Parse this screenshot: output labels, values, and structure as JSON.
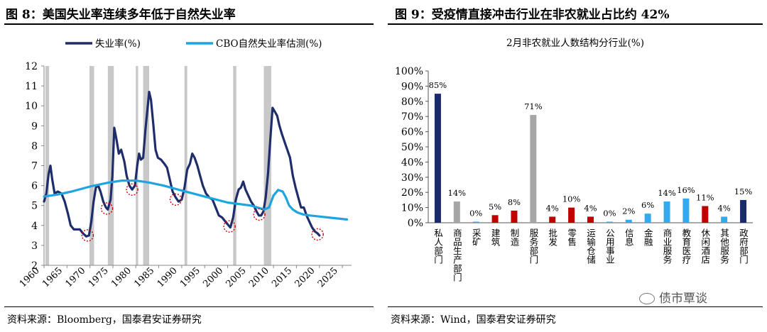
{
  "left": {
    "title": "图 8：美国失业率连续多年低于自然失业率",
    "source": "资料来源：Bloomberg，国泰君安证券研究"
  },
  "right": {
    "title": "图 9：受疫情直接冲击行业在非农就业占比约 42%",
    "source": "资料来源：Wind，国泰君安证券研究"
  },
  "watermark": "债市覃谈",
  "chart_data": [
    {
      "type": "line",
      "title": "",
      "xlabel": "",
      "ylabel": "",
      "xlim": [
        1960,
        2027
      ],
      "ylim": [
        2,
        12
      ],
      "x_ticks": [
        "1960",
        "1965",
        "1970",
        "1975",
        "1980",
        "1985",
        "1990",
        "1995",
        "2000",
        "2005",
        "2010",
        "2015",
        "2020",
        "2025"
      ],
      "y_ticks": [
        "2",
        "3",
        "4",
        "5",
        "6",
        "7",
        "8",
        "9",
        "10",
        "11",
        "12"
      ],
      "legend": [
        "失业率(%)",
        "CBO自然失业率估测(%)"
      ],
      "series": [
        {
          "name": "失业率(%)",
          "color": "#1f2d6b",
          "points": [
            [
              1960.0,
              5.2
            ],
            [
              1960.5,
              5.6
            ],
            [
              1961.0,
              6.6
            ],
            [
              1961.4,
              7.0
            ],
            [
              1961.8,
              6.3
            ],
            [
              1962.3,
              5.6
            ],
            [
              1963.0,
              5.7
            ],
            [
              1963.8,
              5.6
            ],
            [
              1964.5,
              5.2
            ],
            [
              1965.2,
              4.6
            ],
            [
              1965.8,
              4.0
            ],
            [
              1966.5,
              3.8
            ],
            [
              1967.2,
              3.8
            ],
            [
              1967.8,
              3.8
            ],
            [
              1968.5,
              3.6
            ],
            [
              1969.2,
              3.45
            ],
            [
              1969.8,
              3.5
            ],
            [
              1970.3,
              4.2
            ],
            [
              1970.8,
              5.2
            ],
            [
              1971.3,
              5.9
            ],
            [
              1971.8,
              6.0
            ],
            [
              1972.3,
              5.7
            ],
            [
              1972.9,
              5.2
            ],
            [
              1973.5,
              4.9
            ],
            [
              1973.9,
              4.8
            ],
            [
              1974.5,
              5.3
            ],
            [
              1974.9,
              6.5
            ],
            [
              1975.3,
              8.9
            ],
            [
              1975.8,
              8.3
            ],
            [
              1976.3,
              7.6
            ],
            [
              1976.8,
              7.8
            ],
            [
              1977.5,
              7.2
            ],
            [
              1978.0,
              6.5
            ],
            [
              1978.6,
              6.0
            ],
            [
              1979.2,
              5.8
            ],
            [
              1979.8,
              6.0
            ],
            [
              1980.3,
              7.0
            ],
            [
              1980.7,
              7.6
            ],
            [
              1981.1,
              7.3
            ],
            [
              1981.6,
              7.4
            ],
            [
              1982.1,
              8.8
            ],
            [
              1982.6,
              10.0
            ],
            [
              1982.9,
              10.7
            ],
            [
              1983.3,
              10.3
            ],
            [
              1983.8,
              9.1
            ],
            [
              1984.3,
              7.8
            ],
            [
              1984.8,
              7.4
            ],
            [
              1985.5,
              7.3
            ],
            [
              1986.2,
              7.1
            ],
            [
              1986.8,
              6.9
            ],
            [
              1987.4,
              6.3
            ],
            [
              1988.0,
              5.7
            ],
            [
              1988.7,
              5.4
            ],
            [
              1989.3,
              5.2
            ],
            [
              1990.0,
              5.3
            ],
            [
              1990.6,
              5.9
            ],
            [
              1991.2,
              6.8
            ],
            [
              1991.8,
              7.1
            ],
            [
              1992.3,
              7.6
            ],
            [
              1992.8,
              7.4
            ],
            [
              1993.4,
              7.0
            ],
            [
              1994.0,
              6.5
            ],
            [
              1994.6,
              6.0
            ],
            [
              1995.3,
              5.6
            ],
            [
              1996.0,
              5.4
            ],
            [
              1996.7,
              5.3
            ],
            [
              1997.4,
              4.9
            ],
            [
              1998.1,
              4.5
            ],
            [
              1998.8,
              4.4
            ],
            [
              1999.5,
              4.2
            ],
            [
              2000.2,
              4.0
            ],
            [
              2000.6,
              3.9
            ],
            [
              2001.2,
              4.4
            ],
            [
              2001.8,
              5.3
            ],
            [
              2002.4,
              5.8
            ],
            [
              2002.9,
              5.9
            ],
            [
              2003.4,
              6.2
            ],
            [
              2003.9,
              5.8
            ],
            [
              2004.5,
              5.5
            ],
            [
              2005.1,
              5.2
            ],
            [
              2005.7,
              5.0
            ],
            [
              2006.3,
              4.7
            ],
            [
              2006.8,
              4.5
            ],
            [
              2007.3,
              4.5
            ],
            [
              2007.8,
              4.7
            ],
            [
              2008.3,
              5.4
            ],
            [
              2008.8,
              6.6
            ],
            [
              2009.3,
              8.3
            ],
            [
              2009.8,
              9.9
            ],
            [
              2010.3,
              9.7
            ],
            [
              2010.8,
              9.5
            ],
            [
              2011.3,
              9.0
            ],
            [
              2011.8,
              8.6
            ],
            [
              2012.4,
              8.2
            ],
            [
              2013.0,
              7.8
            ],
            [
              2013.6,
              7.4
            ],
            [
              2014.2,
              6.5
            ],
            [
              2014.8,
              5.9
            ],
            [
              2015.4,
              5.4
            ],
            [
              2016.0,
              4.9
            ],
            [
              2016.6,
              4.9
            ],
            [
              2017.2,
              4.5
            ],
            [
              2017.8,
              4.2
            ],
            [
              2018.4,
              3.9
            ],
            [
              2019.0,
              3.7
            ],
            [
              2019.6,
              3.6
            ],
            [
              2020.0,
              3.5
            ]
          ]
        },
        {
          "name": "CBO自然失业率估测(%)",
          "color": "#1ea5e0",
          "points": [
            [
              1960.0,
              5.45
            ],
            [
              1963.0,
              5.55
            ],
            [
              1966.0,
              5.7
            ],
            [
              1970.0,
              5.95
            ],
            [
              1974.0,
              6.15
            ],
            [
              1977.0,
              6.25
            ],
            [
              1980.0,
              6.25
            ],
            [
              1983.0,
              6.15
            ],
            [
              1986.0,
              6.0
            ],
            [
              1990.0,
              5.75
            ],
            [
              1995.0,
              5.45
            ],
            [
              2000.0,
              5.15
            ],
            [
              2005.0,
              5.0
            ],
            [
              2008.0,
              4.8
            ],
            [
              2009.0,
              4.9
            ],
            [
              2010.0,
              5.5
            ],
            [
              2011.0,
              5.78
            ],
            [
              2012.0,
              5.7
            ],
            [
              2012.7,
              5.4
            ],
            [
              2013.4,
              5.0
            ],
            [
              2014.2,
              4.8
            ],
            [
              2015.2,
              4.65
            ],
            [
              2016.5,
              4.55
            ],
            [
              2018.0,
              4.5
            ],
            [
              2020.0,
              4.45
            ],
            [
              2022.0,
              4.4
            ],
            [
              2024.0,
              4.35
            ],
            [
              2026.0,
              4.3
            ]
          ]
        }
      ],
      "recessions": [
        [
          1960.3,
          1961.1
        ],
        [
          1969.9,
          1970.9
        ],
        [
          1973.9,
          1975.2
        ],
        [
          1980.0,
          1980.5
        ],
        [
          1981.6,
          1982.9
        ],
        [
          1990.6,
          1991.2
        ],
        [
          2001.2,
          2001.9
        ],
        [
          2007.9,
          2009.5
        ]
      ],
      "circled_lows": [
        [
          1969.5,
          3.5
        ],
        [
          1973.7,
          4.85
        ],
        [
          1979.2,
          5.8
        ],
        [
          1988.7,
          5.3
        ],
        [
          2000.4,
          3.95
        ],
        [
          2006.9,
          4.55
        ],
        [
          2019.6,
          3.55
        ]
      ],
      "circle_color": "#d00000"
    },
    {
      "type": "bar",
      "title": "2月非农就业人数结构分行业(%)",
      "xlabel": "",
      "ylabel": "",
      "ylim": [
        0,
        100
      ],
      "y_ticks": [
        "0%",
        "10%",
        "20%",
        "30%",
        "40%",
        "50%",
        "60%",
        "70%",
        "80%",
        "90%",
        "100%"
      ],
      "categories": [
        "私人部门",
        "商品生产部门",
        "采矿",
        "建筑",
        "制造",
        "服务部门",
        "批发",
        "零售",
        "运输仓储",
        "公用事业",
        "信息",
        "金融",
        "商业服务",
        "教育医疗",
        "休闲酒店",
        "其他服务",
        "政府部门"
      ],
      "values": [
        85,
        14,
        0,
        5,
        8,
        71,
        4,
        10,
        4,
        0,
        2,
        6,
        14,
        16,
        11,
        4,
        15
      ],
      "labels": [
        "85%",
        "14%",
        "0%",
        "5%",
        "8%",
        "71%",
        "4%",
        "10%",
        "4%",
        "0%",
        "2%",
        "6%",
        "14%",
        "16%",
        "11%",
        "4%",
        "15%"
      ],
      "colors": [
        "#1a2a6c",
        "#a6a6a6",
        "#33aaee",
        "#c00000",
        "#c00000",
        "#a6a6a6",
        "#c00000",
        "#c00000",
        "#c00000",
        "#33aaee",
        "#33aaee",
        "#33aaee",
        "#33aaee",
        "#33aaee",
        "#c00000",
        "#33aaee",
        "#1a2a6c"
      ]
    }
  ]
}
